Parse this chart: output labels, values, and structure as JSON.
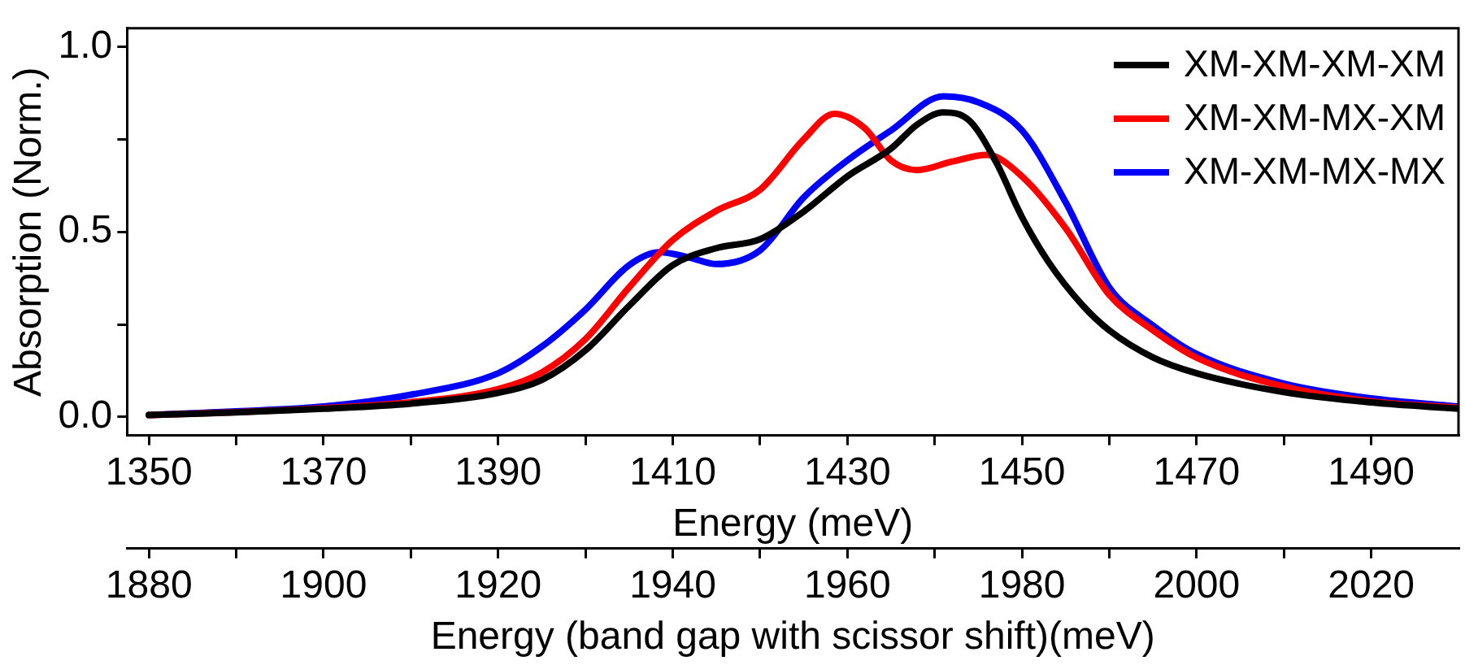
{
  "chart_data": {
    "type": "line",
    "xlabel": "Energy (meV)",
    "ylabel": "Absorption (Norm.)",
    "x2label": "Energy (band gap with scissor shift)(meV)",
    "xlim": [
      1347.5,
      1500
    ],
    "xticks": [
      1350,
      {
        "value": 1360,
        "label": null
      },
      1370,
      {
        "value": 1380,
        "label": null
      },
      1390,
      {
        "value": 1400,
        "label": null
      },
      1410,
      {
        "value": 1420,
        "label": null
      },
      1430,
      {
        "value": 1440,
        "label": null
      },
      1450,
      {
        "value": 1460,
        "label": null
      },
      1470,
      {
        "value": 1480,
        "label": null
      },
      1490
    ],
    "x2lim": [
      1877.5,
      2030
    ],
    "x2ticks": [
      1880,
      {
        "value": 1890,
        "label": null
      },
      1900,
      {
        "value": 1910,
        "label": null
      },
      1920,
      {
        "value": 1930,
        "label": null
      },
      1940,
      {
        "value": 1950,
        "label": null
      },
      1960,
      {
        "value": 1970,
        "label": null
      },
      1980,
      {
        "value": 1990,
        "label": null
      },
      2000,
      {
        "value": 2010,
        "label": null
      },
      2020
    ],
    "ylim": [
      -0.05,
      1.05
    ],
    "yticks": [
      {
        "value": 0,
        "label": "0.0"
      },
      {
        "value": 0.25,
        "label": null
      },
      {
        "value": 0.5,
        "label": "0.5"
      },
      {
        "value": 0.75,
        "label": null
      },
      {
        "value": 1,
        "label": "1.0"
      }
    ],
    "grid": false,
    "legend": "top right",
    "marker": "none",
    "line_style": "solid",
    "series": [
      {
        "name": "XM-XM-XM-XM",
        "color": "#000000",
        "x": [
          1350,
          1360,
          1370,
          1380,
          1390,
          1395,
          1400,
          1405,
          1410,
          1415,
          1420,
          1425,
          1430,
          1435,
          1438,
          1441,
          1444,
          1447,
          1450,
          1453,
          1457,
          1460,
          1465,
          1470,
          1480,
          1490,
          1500
        ],
        "values": [
          0.005,
          0.012,
          0.022,
          0.036,
          0.065,
          0.1,
          0.18,
          0.3,
          0.41,
          0.456,
          0.48,
          0.555,
          0.65,
          0.725,
          0.79,
          0.823,
          0.8,
          0.69,
          0.54,
          0.42,
          0.3,
          0.234,
          0.161,
          0.118,
          0.067,
          0.039,
          0.022
        ]
      },
      {
        "name": "XM-XM-MX-XM",
        "color": "#ff0000",
        "x": [
          1350,
          1360,
          1370,
          1380,
          1390,
          1395,
          1400,
          1405,
          1410,
          1415,
          1420,
          1425,
          1428.5,
          1432,
          1435,
          1438,
          1442,
          1446,
          1450,
          1455,
          1460,
          1465,
          1470,
          1480,
          1490,
          1500
        ],
        "values": [
          0.005,
          0.013,
          0.024,
          0.04,
          0.075,
          0.12,
          0.21,
          0.35,
          0.478,
          0.557,
          0.614,
          0.75,
          0.819,
          0.78,
          0.693,
          0.667,
          0.69,
          0.708,
          0.65,
          0.51,
          0.33,
          0.234,
          0.16,
          0.082,
          0.042,
          0.025
        ]
      },
      {
        "name": "XM-XM-MX-MX",
        "color": "#0000ff",
        "x": [
          1350,
          1360,
          1370,
          1380,
          1390,
          1395,
          1400,
          1405,
          1408.5,
          1412,
          1415,
          1420,
          1425,
          1430,
          1435,
          1441,
          1445,
          1450,
          1455,
          1460,
          1465,
          1470,
          1480,
          1490,
          1500
        ],
        "values": [
          0.005,
          0.015,
          0.028,
          0.06,
          0.118,
          0.19,
          0.29,
          0.41,
          0.445,
          0.43,
          0.413,
          0.45,
          0.593,
          0.693,
          0.774,
          0.866,
          0.85,
          0.774,
          0.58,
          0.35,
          0.247,
          0.17,
          0.09,
          0.05,
          0.028
        ]
      }
    ]
  }
}
